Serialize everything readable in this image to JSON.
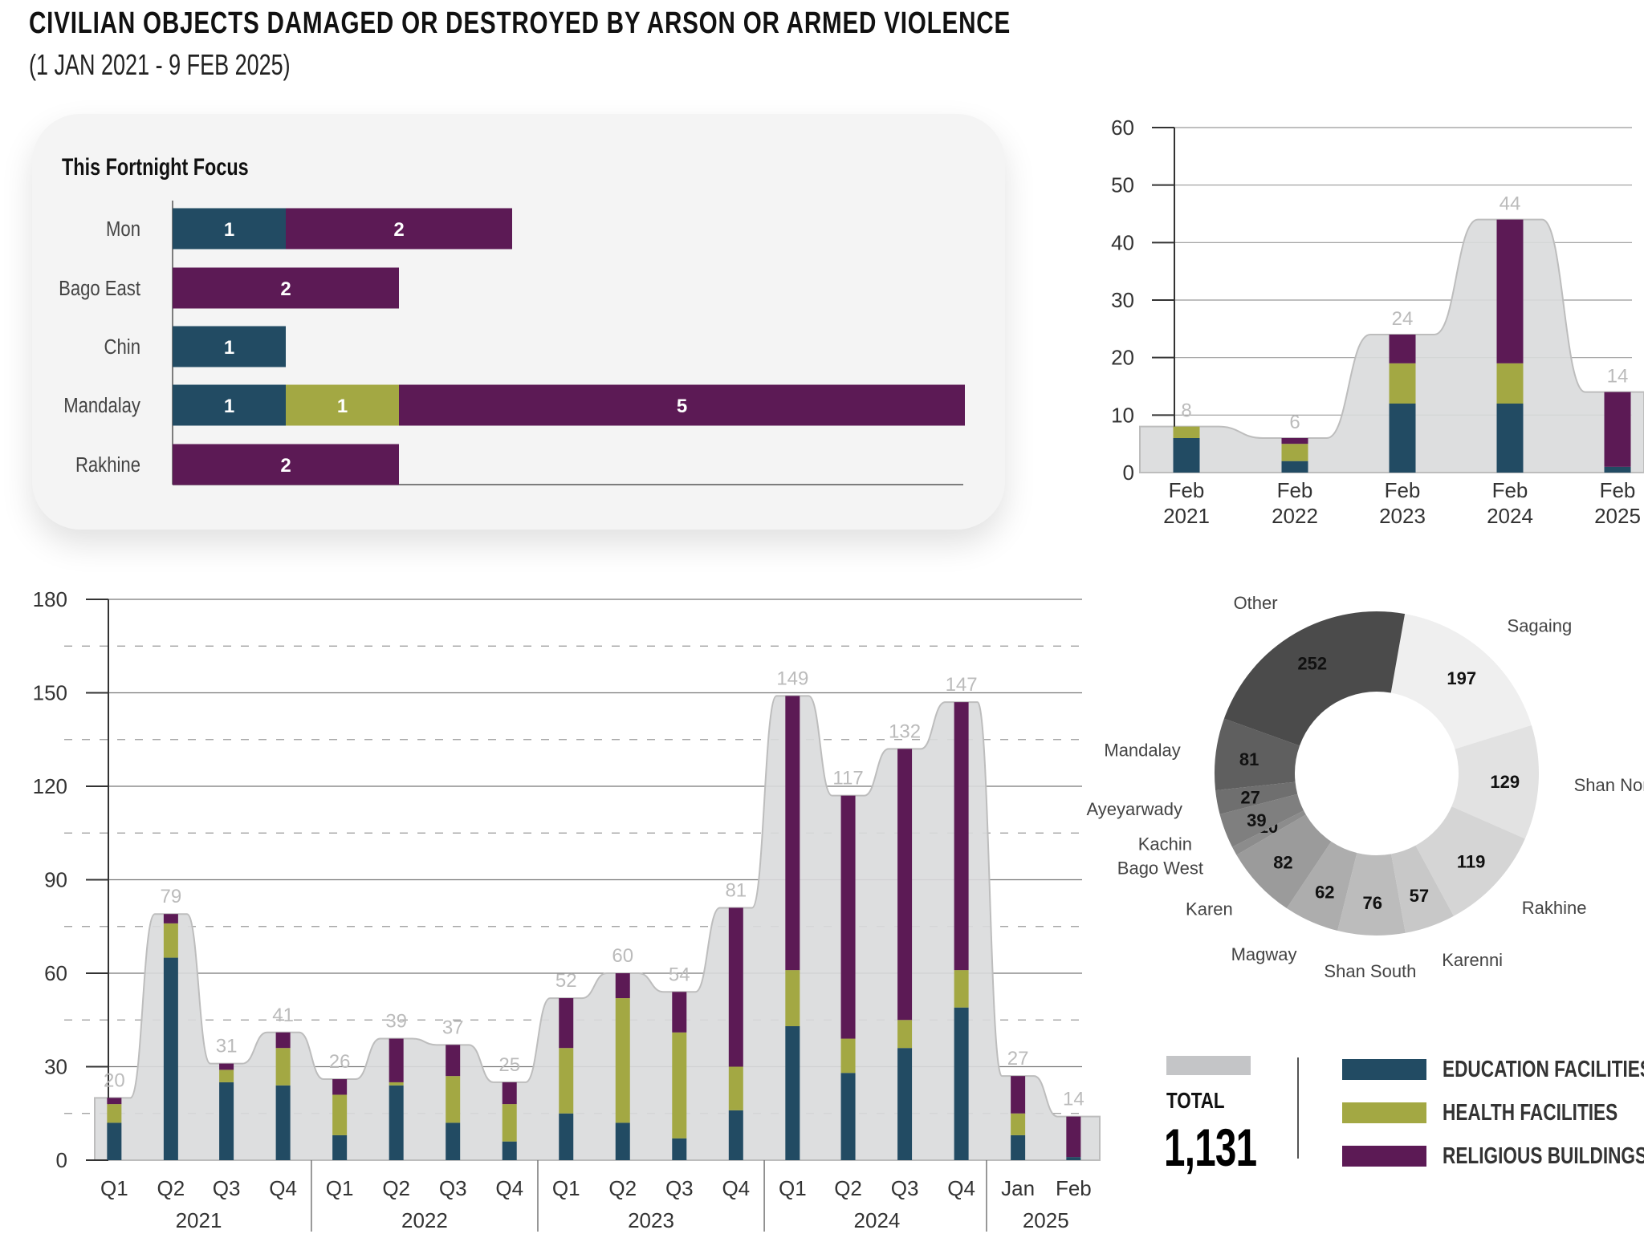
{
  "header": {
    "title": "CIVILIAN OBJECTS DAMAGED OR DESTROYED BY ARSON OR ARMED VIOLENCE",
    "subtitle": "(1 JAN 2021 - 9 FEB 2025)"
  },
  "colors": {
    "education": "#224b63",
    "health": "#a3a843",
    "religious": "#5c1a55",
    "total": "#d9dadc"
  },
  "legend": {
    "total_label": "TOTAL",
    "total_value": "1,131",
    "items": [
      {
        "label": "EDUCATION FACILITIES",
        "color": "#224b63"
      },
      {
        "label": "HEALTH FACILITIES",
        "color": "#a3a843"
      },
      {
        "label": "RELIGIOUS BUILDINGS",
        "color": "#5c1a55"
      }
    ]
  },
  "chart_data": [
    {
      "type": "bar",
      "orientation": "horizontal",
      "stacked": true,
      "title": "This Fortnight Focus",
      "categories": [
        "Mon",
        "Bago East",
        "Chin",
        "Mandalay",
        "Rakhine"
      ],
      "series": [
        {
          "name": "EDUCATION FACILITIES",
          "values": [
            1,
            0,
            1,
            1,
            0
          ]
        },
        {
          "name": "HEALTH FACILITIES",
          "values": [
            0,
            0,
            0,
            1,
            0
          ]
        },
        {
          "name": "RELIGIOUS BUILDINGS",
          "values": [
            2,
            2,
            0,
            5,
            2
          ]
        }
      ]
    },
    {
      "type": "bar",
      "stacked": true,
      "categories": [
        "Feb 2021",
        "Feb 2022",
        "Feb 2023",
        "Feb 2024",
        "Feb 2025"
      ],
      "category_lines": [
        [
          "Feb",
          "2021"
        ],
        [
          "Feb",
          "2022"
        ],
        [
          "Feb",
          "2023"
        ],
        [
          "Feb",
          "2024"
        ],
        [
          "Feb",
          "2025"
        ]
      ],
      "totals": [
        8,
        6,
        24,
        44,
        14
      ],
      "series": [
        {
          "name": "EDUCATION FACILITIES",
          "values": [
            6,
            2,
            12,
            12,
            1
          ]
        },
        {
          "name": "HEALTH FACILITIES",
          "values": [
            2,
            3,
            7,
            7,
            0
          ]
        },
        {
          "name": "RELIGIOUS BUILDINGS",
          "values": [
            0,
            1,
            5,
            25,
            13
          ]
        }
      ],
      "ylim": [
        0,
        60
      ],
      "yticks": [
        0,
        10,
        20,
        30,
        40,
        50,
        60
      ],
      "grid": true
    },
    {
      "type": "bar",
      "stacked": true,
      "categories": [
        "Q1",
        "Q2",
        "Q3",
        "Q4",
        "Q1",
        "Q2",
        "Q3",
        "Q4",
        "Q1",
        "Q2",
        "Q3",
        "Q4",
        "Q1",
        "Q2",
        "Q3",
        "Q4",
        "Jan",
        "Feb"
      ],
      "groups": [
        {
          "label": "2021",
          "count": 4
        },
        {
          "label": "2022",
          "count": 4
        },
        {
          "label": "2023",
          "count": 4
        },
        {
          "label": "2024",
          "count": 4
        },
        {
          "label": "2025",
          "count": 2
        }
      ],
      "totals": [
        20,
        79,
        31,
        41,
        26,
        39,
        37,
        25,
        52,
        60,
        54,
        81,
        149,
        117,
        132,
        147,
        27,
        14
      ],
      "series": [
        {
          "name": "EDUCATION FACILITIES",
          "values": [
            12,
            65,
            25,
            24,
            8,
            24,
            12,
            6,
            15,
            12,
            7,
            16,
            43,
            28,
            36,
            49,
            8,
            1
          ]
        },
        {
          "name": "HEALTH FACILITIES",
          "values": [
            6,
            11,
            4,
            12,
            13,
            1,
            15,
            12,
            21,
            40,
            34,
            14,
            18,
            11,
            9,
            12,
            7,
            0
          ]
        },
        {
          "name": "RELIGIOUS BUILDINGS",
          "values": [
            2,
            3,
            2,
            5,
            5,
            14,
            10,
            7,
            16,
            8,
            13,
            51,
            88,
            78,
            87,
            86,
            12,
            13
          ]
        }
      ],
      "ylim": [
        0,
        180
      ],
      "yticks": [
        0,
        30,
        60,
        90,
        120,
        150,
        180
      ],
      "grid": true
    },
    {
      "type": "pie",
      "donut": true,
      "categories": [
        "Sagaing",
        "Shan North",
        "Rakhine",
        "Karenni",
        "Shan South",
        "Magway",
        "Karen",
        "Bago West",
        "Kachin",
        "Ayeyarwady",
        "Mandalay",
        "Other"
      ],
      "values": [
        197,
        129,
        119,
        57,
        76,
        62,
        82,
        10,
        39,
        27,
        81,
        252
      ],
      "colors": [
        "#efefef",
        "#e2e2e2",
        "#d5d5d5",
        "#c8c8c8",
        "#bcbcbc",
        "#adadad",
        "#9b9b9b",
        "#8c8c8c",
        "#7f7f7f",
        "#6f6f6f",
        "#5f5f5f",
        "#4b4b4b"
      ]
    }
  ]
}
